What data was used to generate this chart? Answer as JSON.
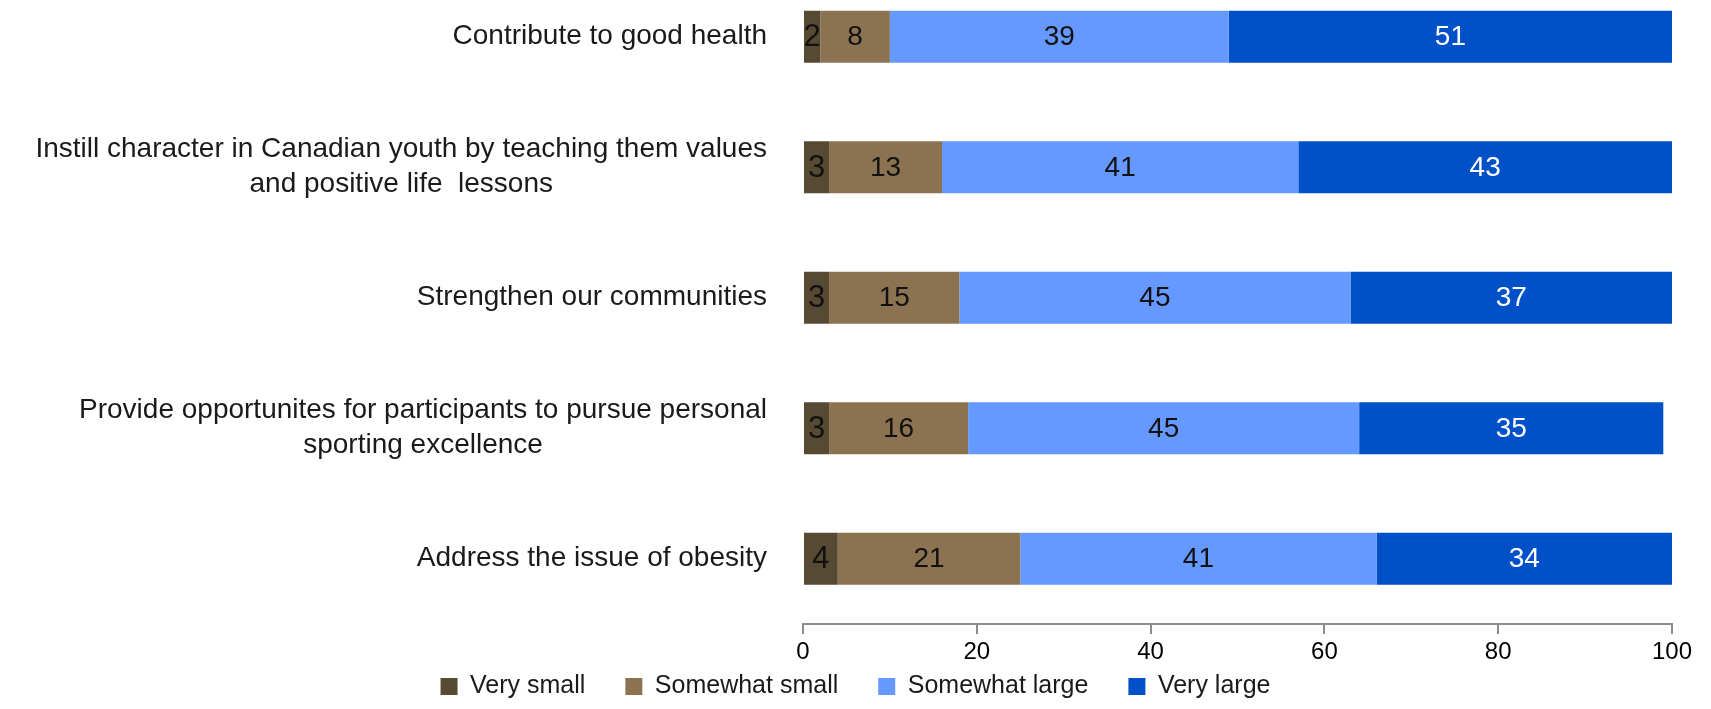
{
  "chart_data": {
    "type": "bar",
    "orientation": "horizontal",
    "stacked": true,
    "categories": [
      "Contribute to good health",
      "Instill character in Canadian youth by teaching them values and positive life  lessons",
      "Strengthen our communities",
      "Provide opportunites for participants to pursue personal sporting excellence",
      "Address the issue of obesity"
    ],
    "series": [
      {
        "name": "Very small",
        "color": "#574a33",
        "values": [
          2,
          3,
          3,
          3,
          4
        ]
      },
      {
        "name": "Somewhat small",
        "color": "#8b7352",
        "values": [
          8,
          13,
          15,
          16,
          21
        ]
      },
      {
        "name": "Somewhat large",
        "color": "#6699ff",
        "values": [
          39,
          41,
          45,
          45,
          41
        ]
      },
      {
        "name": "Very large",
        "color": "#0050c8",
        "values": [
          51,
          43,
          37,
          35,
          34
        ]
      }
    ],
    "xlim": [
      0,
      100
    ],
    "xticks": [
      0,
      20,
      40,
      60,
      80,
      100
    ],
    "data_labels": true,
    "legend": "bottom"
  }
}
